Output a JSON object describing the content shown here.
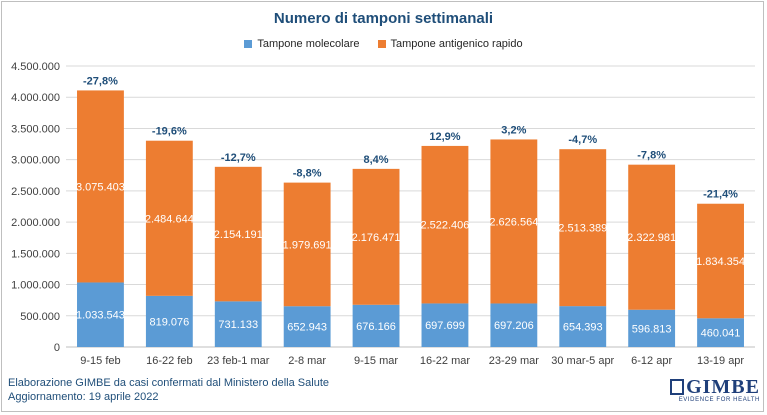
{
  "chart_data": {
    "type": "bar",
    "stacked": true,
    "title": "Numero di tamponi settimanali",
    "categories": [
      "9-15 feb",
      "16-22 feb",
      "23 feb-1 mar",
      "2-8 mar",
      "9-15 mar",
      "16-22 mar",
      "23-29 mar",
      "30 mar-5 apr",
      "6-12 apr",
      "13-19 apr"
    ],
    "series": [
      {
        "name": "Tampone molecolare",
        "color": "#5b9bd5",
        "values": [
          1033543,
          819076,
          731133,
          652943,
          676166,
          697699,
          697206,
          654393,
          596813,
          460041
        ],
        "labels": [
          "1.033.543",
          "819.076",
          "731.133",
          "652.943",
          "676.166",
          "697.699",
          "697.206",
          "654.393",
          "596.813",
          "460.041"
        ]
      },
      {
        "name": "Tampone antigenico rapido",
        "color": "#ed7d31",
        "values": [
          3075403,
          2484644,
          2154191,
          1979691,
          2176471,
          2522406,
          2626564,
          2513389,
          2322981,
          1834354
        ],
        "labels": [
          "3.075.403",
          "2.484.644",
          "2.154.191",
          "1.979.691",
          "2.176.471",
          "2.522.406",
          "2.626.564",
          "2.513.389",
          "2.322.981",
          "1.834.354"
        ]
      }
    ],
    "change_labels": [
      "-27,8%",
      "-19,6%",
      "-12,7%",
      "-8,8%",
      "8,4%",
      "12,9%",
      "3,2%",
      "-4,7%",
      "-7,8%",
      "-21,4%"
    ],
    "ylim": [
      0,
      4500000
    ],
    "yticks": [
      0,
      500000,
      1000000,
      1500000,
      2000000,
      2500000,
      3000000,
      3500000,
      4000000,
      4500000
    ],
    "ytick_labels": [
      "0",
      "500.000",
      "1.000.000",
      "1.500.000",
      "2.000.000",
      "2.500.000",
      "3.000.000",
      "3.500.000",
      "4.000.000",
      "4.500.000"
    ],
    "grid": true,
    "legend_position": "top"
  },
  "footer": {
    "line1": "Elaborazione GIMBE da casi confermati dal Ministero della Salute",
    "line2": "Aggiornamento: 19 aprile 2022"
  },
  "logo": {
    "name": "GIMBE",
    "tagline": "EVIDENCE FOR HEALTH"
  }
}
